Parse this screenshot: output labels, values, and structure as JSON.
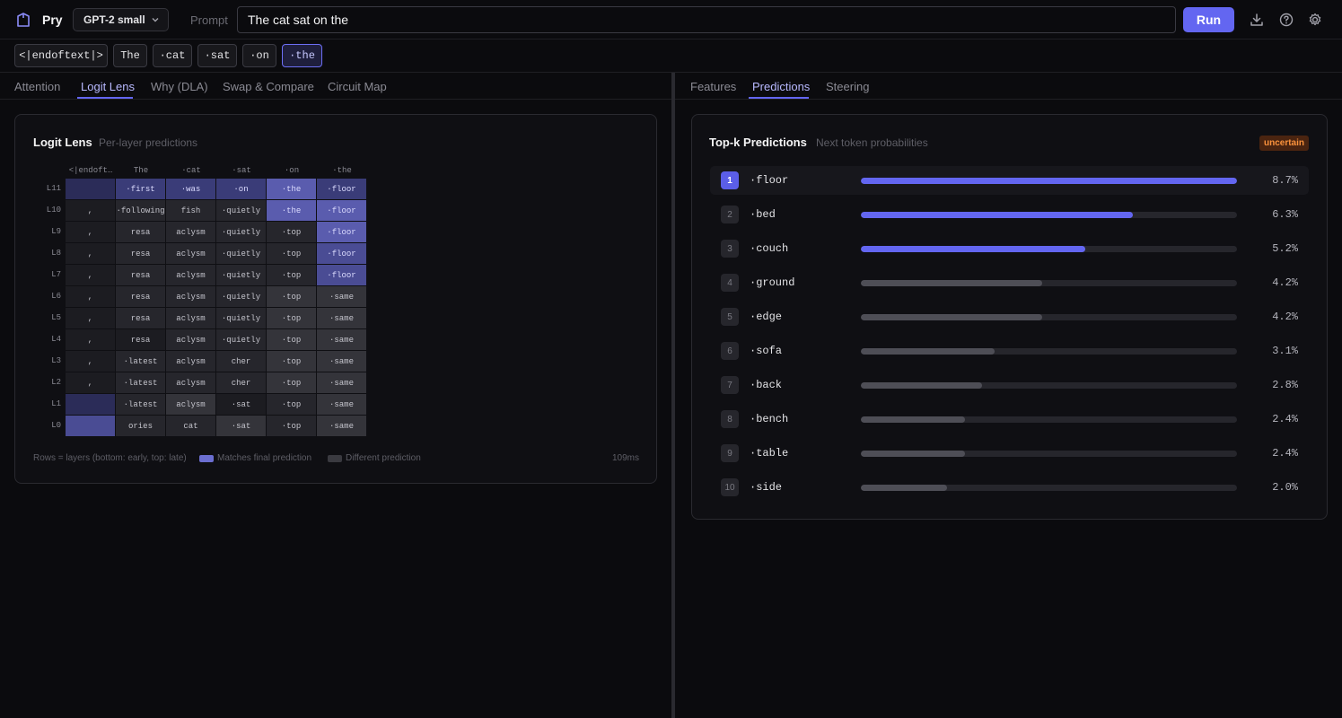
{
  "header": {
    "app_name": "Pry",
    "model": "GPT-2 small",
    "prompt_label": "Prompt",
    "prompt_value": "The cat sat on the",
    "run_label": "Run"
  },
  "tokens": [
    "<|endoftext|>",
    "The",
    "·cat",
    "·sat",
    "·on",
    "·the"
  ],
  "active_token_index": 5,
  "left_tabs": [
    "Attention",
    "Logit Lens",
    "Why (DLA)",
    "Swap & Compare",
    "Circuit Map"
  ],
  "left_active_tab": 1,
  "right_tabs": [
    "Features",
    "Predictions",
    "Steering"
  ],
  "right_active_tab": 1,
  "logit_lens": {
    "title": "Logit Lens",
    "subtitle": "Per-layer predictions",
    "columns": [
      "<|endoft…",
      "The",
      "·cat",
      "·sat",
      "·on",
      "·the"
    ],
    "rows": [
      {
        "layer": "L11",
        "cells": [
          "",
          "·first",
          "·was",
          "·on",
          "·the",
          "·floor"
        ]
      },
      {
        "layer": "L10",
        "cells": [
          ",",
          "·following",
          "fish",
          "·quietly",
          "·the",
          "·floor"
        ]
      },
      {
        "layer": "L9",
        "cells": [
          ",",
          "resa",
          "aclysm",
          "·quietly",
          "·top",
          "·floor"
        ]
      },
      {
        "layer": "L8",
        "cells": [
          ",",
          "resa",
          "aclysm",
          "·quietly",
          "·top",
          "·floor"
        ]
      },
      {
        "layer": "L7",
        "cells": [
          ",",
          "resa",
          "aclysm",
          "·quietly",
          "·top",
          "·floor"
        ]
      },
      {
        "layer": "L6",
        "cells": [
          ",",
          "resa",
          "aclysm",
          "·quietly",
          "·top",
          "·same"
        ]
      },
      {
        "layer": "L5",
        "cells": [
          ",",
          "resa",
          "aclysm",
          "·quietly",
          "·top",
          "·same"
        ]
      },
      {
        "layer": "L4",
        "cells": [
          ",",
          "resa",
          "aclysm",
          "·quietly",
          "·top",
          "·same"
        ]
      },
      {
        "layer": "L3",
        "cells": [
          ",",
          "·latest",
          "aclysm",
          "cher",
          "·top",
          "·same"
        ]
      },
      {
        "layer": "L2",
        "cells": [
          ",",
          "·latest",
          "aclysm",
          "cher",
          "·top",
          "·same"
        ]
      },
      {
        "layer": "L1",
        "cells": [
          "",
          "·latest",
          "aclysm",
          "·sat",
          "·top",
          "·same"
        ]
      },
      {
        "layer": "L0",
        "cells": [
          "",
          "ories",
          "cat",
          "·sat",
          "·top",
          "·same"
        ]
      }
    ],
    "shades": [
      [
        3,
        4,
        4,
        4,
        6,
        4
      ],
      [
        0,
        1,
        1,
        1,
        6,
        6
      ],
      [
        0,
        1,
        1,
        1,
        1,
        6
      ],
      [
        0,
        1,
        1,
        1,
        1,
        5
      ],
      [
        0,
        1,
        1,
        1,
        1,
        5
      ],
      [
        0,
        1,
        1,
        1,
        2,
        2
      ],
      [
        0,
        1,
        1,
        1,
        2,
        2
      ],
      [
        0,
        0,
        1,
        1,
        2,
        2
      ],
      [
        0,
        1,
        1,
        1,
        2,
        2
      ],
      [
        0,
        1,
        1,
        1,
        2,
        2
      ],
      [
        3,
        1,
        2,
        0,
        1,
        2
      ],
      [
        5,
        1,
        1,
        2,
        1,
        2
      ]
    ],
    "legend_rows": "Rows = layers (bottom: early, top: late)",
    "legend_match": "Matches final prediction",
    "legend_diff": "Different prediction",
    "timing": "109ms"
  },
  "predictions": {
    "title": "Top-k Predictions",
    "subtitle": "Next token probabilities",
    "badge": "uncertain",
    "items": [
      {
        "rank": "1",
        "token": "·floor",
        "pct": "8.7%",
        "value": 8.7
      },
      {
        "rank": "2",
        "token": "·bed",
        "pct": "6.3%",
        "value": 6.3
      },
      {
        "rank": "3",
        "token": "·couch",
        "pct": "5.2%",
        "value": 5.2
      },
      {
        "rank": "4",
        "token": "·ground",
        "pct": "4.2%",
        "value": 4.2
      },
      {
        "rank": "5",
        "token": "·edge",
        "pct": "4.2%",
        "value": 4.2
      },
      {
        "rank": "6",
        "token": "·sofa",
        "pct": "3.1%",
        "value": 3.1
      },
      {
        "rank": "7",
        "token": "·back",
        "pct": "2.8%",
        "value": 2.8
      },
      {
        "rank": "8",
        "token": "·bench",
        "pct": "2.4%",
        "value": 2.4
      },
      {
        "rank": "9",
        "token": "·table",
        "pct": "2.4%",
        "value": 2.4
      },
      {
        "rank": "10",
        "token": "·side",
        "pct": "2.0%",
        "value": 2.0
      }
    ]
  },
  "colors": {
    "accent": "#6366f1",
    "bar_accent": "#6366f1",
    "bar_neutral": "#4e4e56",
    "badge_text": "#fb923c"
  }
}
